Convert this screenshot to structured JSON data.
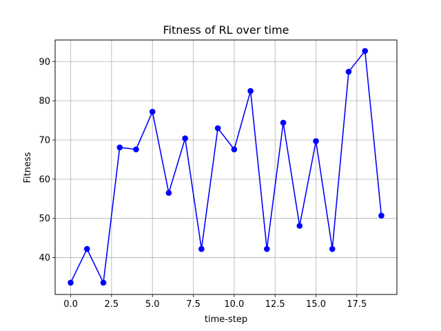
{
  "chart_data": {
    "type": "line",
    "title": "Fitness of RL over time",
    "xlabel": "time-step",
    "ylabel": "Fitness",
    "xlim": [
      -0.95,
      19.95
    ],
    "ylim": [
      30.6,
      95.5
    ],
    "grid": true,
    "series": [
      {
        "name": "Fitness",
        "color": "#0000ff",
        "x": [
          0,
          1,
          2,
          3,
          4,
          5,
          6,
          7,
          8,
          9,
          10,
          11,
          12,
          13,
          14,
          15,
          16,
          17,
          18,
          19
        ],
        "y": [
          33.6,
          42.2,
          33.6,
          68.1,
          67.6,
          77.2,
          56.5,
          70.4,
          42.2,
          73.0,
          67.6,
          82.5,
          42.2,
          74.4,
          48.1,
          69.7,
          42.2,
          87.4,
          92.7,
          50.7
        ]
      }
    ],
    "xticks": [
      0.0,
      2.5,
      5.0,
      7.5,
      10.0,
      12.5,
      15.0,
      17.5
    ],
    "xtick_labels": [
      "0.0",
      "2.5",
      "5.0",
      "7.5",
      "10.0",
      "12.5",
      "15.0",
      "17.5"
    ],
    "yticks": [
      40,
      50,
      60,
      70,
      80,
      90
    ],
    "ytick_labels": [
      "40",
      "50",
      "60",
      "70",
      "80",
      "90"
    ]
  }
}
